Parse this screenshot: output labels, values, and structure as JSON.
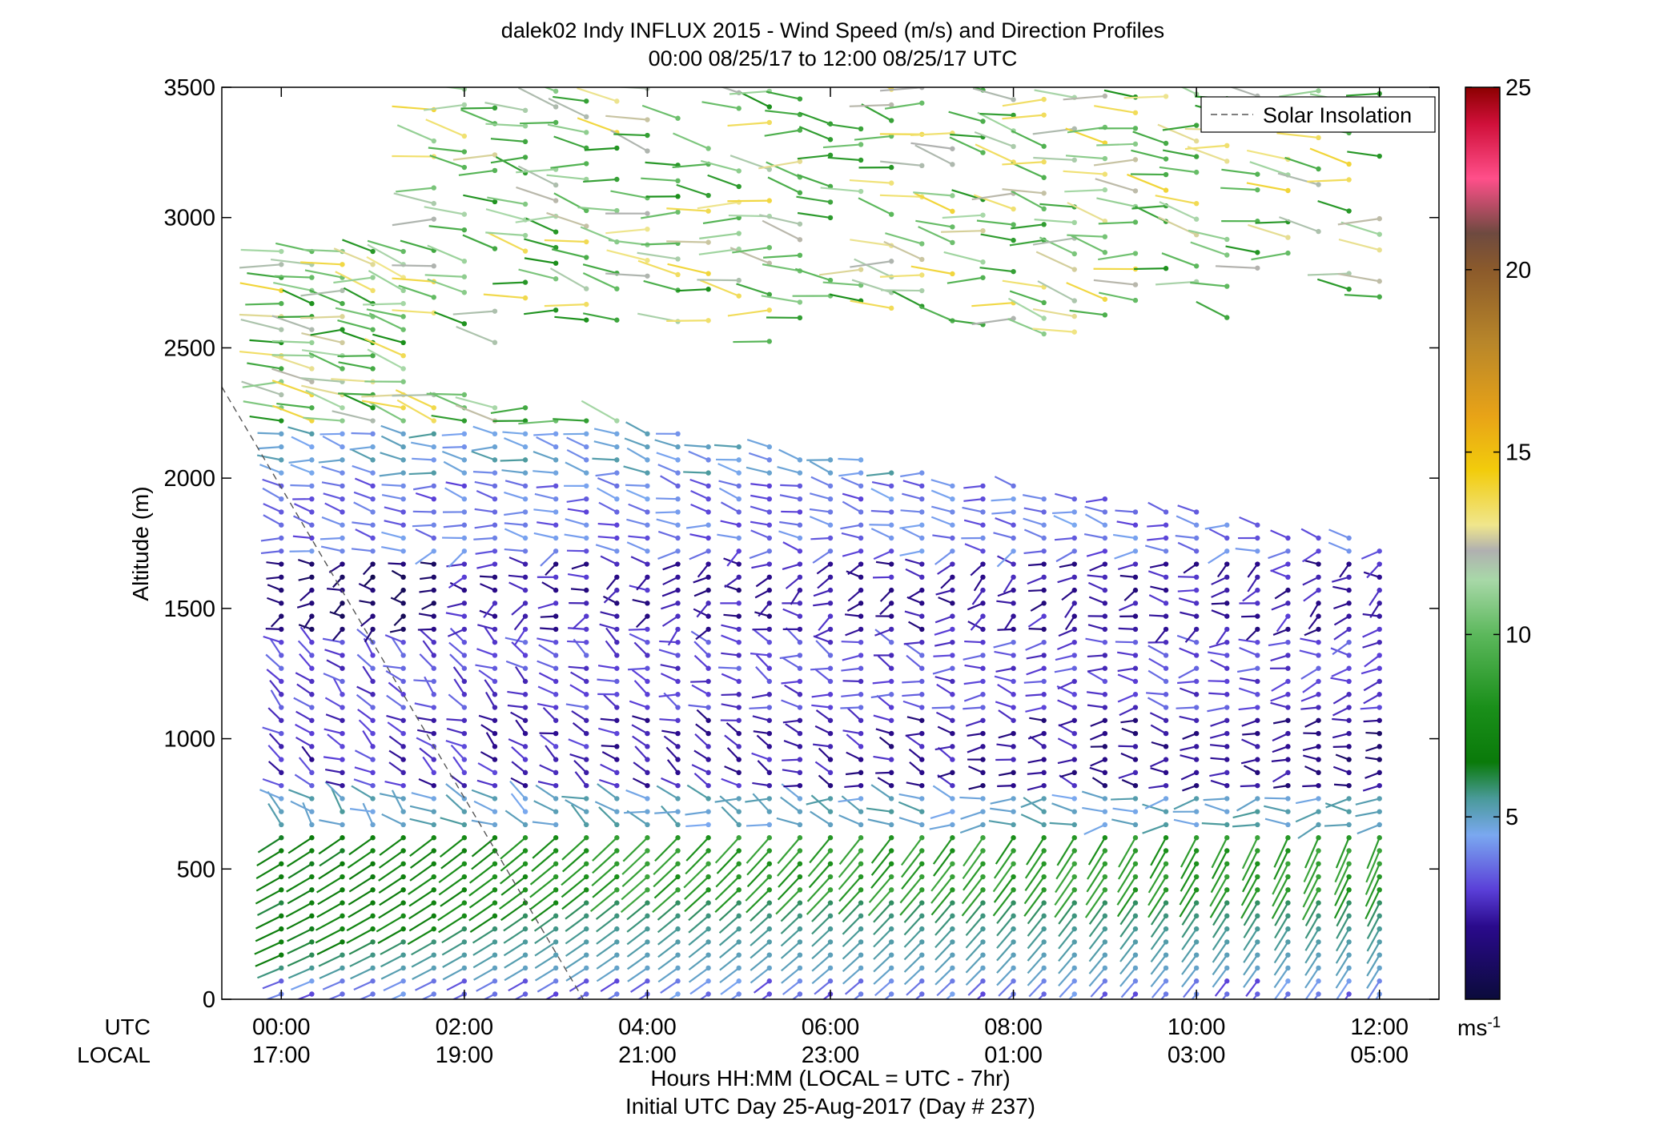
{
  "chart_data": {
    "type": "wind-barb-profile",
    "title": "dalek02 Indy INFLUX 2015 - Wind Speed (m/s) and Direction Profiles",
    "subtitle": "00:00 08/25/17 to 12:00 08/25/17  UTC",
    "ylabel": "Altitude (m)",
    "xlabel": "Hours HH:MM  (LOCAL = UTC - 7hr)",
    "xlabel2": "Initial UTC Day 25-Aug-2017 (Day # 237)",
    "row_label_utc": "UTC",
    "row_label_local": "LOCAL",
    "xlim_hours": [
      -0.65,
      12.65
    ],
    "ylim": [
      0,
      3500
    ],
    "y_ticks": [
      0,
      500,
      1000,
      1500,
      2000,
      2500,
      3000,
      3500
    ],
    "y_tick_labels": [
      "0",
      "500",
      "1000",
      "1500",
      "2000",
      "2500",
      "3000",
      "3500"
    ],
    "x_ticks_hours": [
      0,
      2,
      4,
      6,
      8,
      10,
      12
    ],
    "x_tick_labels_utc": [
      "00:00",
      "02:00",
      "04:00",
      "06:00",
      "08:00",
      "10:00",
      "12:00"
    ],
    "x_tick_labels_local": [
      "17:00",
      "19:00",
      "21:00",
      "23:00",
      "01:00",
      "03:00",
      "05:00"
    ],
    "legend": {
      "entries": [
        "Solar Insolation"
      ],
      "placement": "top-right",
      "style": "dashed gray"
    },
    "solar_insolation_line": {
      "x_hours": [
        -0.65,
        3.3
      ],
      "y": [
        2350,
        0
      ]
    },
    "profile_interval_minutes": 20,
    "profile_count": 37,
    "colorbar": {
      "range": [
        0,
        25
      ],
      "ticks": [
        5,
        10,
        15,
        20,
        25
      ],
      "tick_labels": [
        "5",
        "10",
        "15",
        "20",
        "25"
      ],
      "unit_label": "ms",
      "unit_exponent": "-1",
      "colormap": [
        [
          0,
          "#0b0b3b"
        ],
        [
          2,
          "#2a0a8c"
        ],
        [
          3,
          "#5a3fd8"
        ],
        [
          4.5,
          "#7aa8f0"
        ],
        [
          5.5,
          "#4a9a9a"
        ],
        [
          6.5,
          "#0a7a0a"
        ],
        [
          8,
          "#1a8f1a"
        ],
        [
          10,
          "#5cb85c"
        ],
        [
          11.5,
          "#a8d8a8"
        ],
        [
          12.3,
          "#b0b0b0"
        ],
        [
          13,
          "#f0e68c"
        ],
        [
          14.5,
          "#f2cc0c"
        ],
        [
          16,
          "#e8a317"
        ],
        [
          18,
          "#b8862a"
        ],
        [
          20,
          "#8b5a2b"
        ],
        [
          21,
          "#6e4a40"
        ],
        [
          22.5,
          "#ff4f8a"
        ],
        [
          24,
          "#d0103a"
        ],
        [
          25,
          "#8b0000"
        ]
      ]
    }
  }
}
